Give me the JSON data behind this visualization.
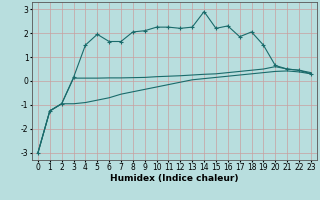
{
  "xlabel": "Humidex (Indice chaleur)",
  "background_color": "#b8dede",
  "grid_color": "#c8a0a0",
  "line_color": "#1a6b6b",
  "xlim": [
    -0.5,
    23.5
  ],
  "ylim": [
    -3.3,
    3.3
  ],
  "yticks": [
    -3,
    -2,
    -1,
    0,
    1,
    2,
    3
  ],
  "xticks": [
    0,
    1,
    2,
    3,
    4,
    5,
    6,
    7,
    8,
    9,
    10,
    11,
    12,
    13,
    14,
    15,
    16,
    17,
    18,
    19,
    20,
    21,
    22,
    23
  ],
  "line1_x": [
    0,
    1,
    2,
    3,
    4,
    5,
    6,
    7,
    8,
    9,
    10,
    11,
    12,
    13,
    14,
    15,
    16,
    17,
    18,
    19,
    20,
    21,
    22,
    23
  ],
  "line1_y": [
    -3.0,
    -1.25,
    -0.95,
    0.15,
    1.5,
    1.95,
    1.65,
    1.65,
    2.05,
    2.1,
    2.25,
    2.25,
    2.2,
    2.25,
    2.9,
    2.2,
    2.3,
    1.85,
    2.05,
    1.5,
    0.65,
    0.5,
    0.45,
    0.3
  ],
  "line2_x": [
    0,
    1,
    2,
    3,
    4,
    5,
    6,
    7,
    8,
    9,
    10,
    11,
    12,
    13,
    14,
    15,
    16,
    17,
    18,
    19,
    20,
    21,
    22,
    23
  ],
  "line2_y": [
    -3.0,
    -1.25,
    -0.95,
    0.12,
    0.12,
    0.12,
    0.13,
    0.13,
    0.14,
    0.15,
    0.18,
    0.2,
    0.22,
    0.25,
    0.28,
    0.3,
    0.35,
    0.4,
    0.45,
    0.5,
    0.6,
    0.5,
    0.45,
    0.35
  ],
  "line3_x": [
    0,
    1,
    2,
    3,
    4,
    5,
    6,
    7,
    8,
    9,
    10,
    11,
    12,
    13,
    14,
    15,
    16,
    17,
    18,
    19,
    20,
    21,
    22,
    23
  ],
  "line3_y": [
    -3.0,
    -1.25,
    -0.95,
    -0.95,
    -0.9,
    -0.8,
    -0.7,
    -0.55,
    -0.45,
    -0.35,
    -0.25,
    -0.15,
    -0.05,
    0.05,
    0.1,
    0.15,
    0.2,
    0.25,
    0.3,
    0.35,
    0.4,
    0.42,
    0.38,
    0.3
  ]
}
